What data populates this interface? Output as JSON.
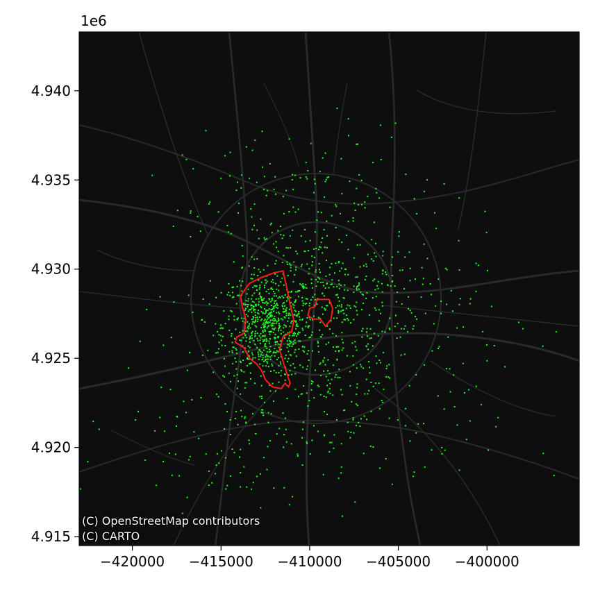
{
  "map": {
    "scale_offset": "1e6",
    "basemap": "dark",
    "x_ticks": [
      "−420000",
      "−415000",
      "−410000",
      "−405000",
      "−400000"
    ],
    "y_ticks": [
      "4.940",
      "4.935",
      "4.930",
      "4.925",
      "4.920",
      "4.915"
    ],
    "x_tick_values": [
      -420000,
      -415000,
      -410000,
      -405000,
      -400000
    ],
    "y_tick_values": [
      4.94,
      4.935,
      4.93,
      4.925,
      4.92,
      4.915
    ],
    "xlim": [
      -423000,
      -394800
    ],
    "ylim": [
      4.9145,
      4.9433
    ],
    "attribution": [
      "(C) OpenStreetMap contributors",
      "(C) CARTO"
    ],
    "colors": {
      "background": "#0e0e0e",
      "points": "#22ff22",
      "boundary": "#ff1a1a",
      "roads": "#2a2a2a"
    }
  },
  "chart_data": {
    "type": "scatter",
    "x_unit": "meters (Web Mercator)",
    "y_unit": "meters x 1e6 (Web Mercator)",
    "xlim": [
      -423000,
      -394800
    ],
    "ylim": [
      4.9145,
      4.9433
    ],
    "grid": false,
    "clusters": [
      {
        "center_x": -412300,
        "center_y": 4.9268,
        "spread_x": 1300,
        "spread_y": 1500,
        "n": 700
      },
      {
        "center_x": -410500,
        "center_y": 4.932,
        "spread_x": 3200,
        "spread_y": 3000,
        "n": 260
      },
      {
        "center_x": -408700,
        "center_y": 4.9285,
        "spread_x": 1500,
        "spread_y": 1200,
        "n": 120
      },
      {
        "center_x": -408500,
        "center_y": 4.924,
        "spread_x": 1500,
        "spread_y": 1700,
        "n": 110
      },
      {
        "center_x": -405000,
        "center_y": 4.9275,
        "spread_x": 3000,
        "spread_y": 2500,
        "n": 160
      },
      {
        "center_x": -414000,
        "center_y": 4.9215,
        "spread_x": 3500,
        "spread_y": 2500,
        "n": 160
      },
      {
        "center_x": -406000,
        "center_y": 4.9205,
        "spread_x": 3500,
        "spread_y": 2000,
        "n": 60
      }
    ],
    "boundaries": [
      {
        "name": "",
        "points": [
          [
            -413900,
            4.9285
          ],
          [
            -413400,
            4.9292
          ],
          [
            -412800,
            4.9295
          ],
          [
            -412000,
            4.9298
          ],
          [
            -411500,
            4.9299
          ],
          [
            -411300,
            4.929
          ],
          [
            -411100,
            4.928
          ],
          [
            -410900,
            4.9272
          ],
          [
            -411000,
            4.9265
          ],
          [
            -411500,
            4.9262
          ],
          [
            -411700,
            4.9255
          ],
          [
            -411400,
            4.9245
          ],
          [
            -411100,
            4.9236
          ],
          [
            -411200,
            4.9234
          ],
          [
            -411400,
            4.9236
          ],
          [
            -411600,
            4.9233
          ],
          [
            -412100,
            4.9234
          ],
          [
            -412500,
            4.9238
          ],
          [
            -412700,
            4.9243
          ],
          [
            -413000,
            4.9247
          ],
          [
            -413400,
            4.925
          ],
          [
            -413700,
            4.9256
          ],
          [
            -414200,
            4.9259
          ],
          [
            -414100,
            4.9262
          ],
          [
            -413700,
            4.9264
          ],
          [
            -413600,
            4.9272
          ],
          [
            -413800,
            4.9279
          ],
          [
            -413900,
            4.9285
          ]
        ]
      },
      {
        "name": "",
        "points": [
          [
            -409600,
            4.9283
          ],
          [
            -408900,
            4.9283
          ],
          [
            -408700,
            4.9278
          ],
          [
            -408800,
            4.9272
          ],
          [
            -409100,
            4.9268
          ],
          [
            -409400,
            4.9272
          ],
          [
            -409800,
            4.9272
          ],
          [
            -410100,
            4.9274
          ],
          [
            -410000,
            4.9278
          ],
          [
            -409700,
            4.9279
          ],
          [
            -409600,
            4.9283
          ]
        ]
      }
    ]
  }
}
